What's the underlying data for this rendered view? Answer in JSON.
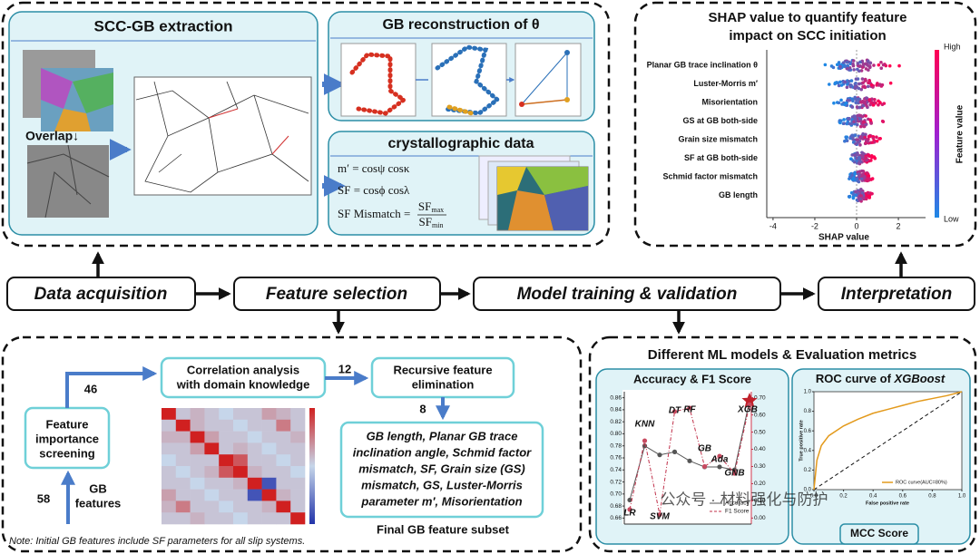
{
  "flow": [
    "Data acquisition",
    "Feature selection",
    "Model training & validation",
    "Interpretation"
  ],
  "acquisition": {
    "extraction_title": "SCC-GB extraction",
    "overlap": "Overlap↓",
    "reconstruction_title": "GB reconstruction of θ",
    "crystal_title": "crystallographic data",
    "equations": [
      "m′ = cosψ cosκ",
      "SF = cosϕ cosλ"
    ],
    "mismatch": {
      "lhs": "SF Mismatch =",
      "numerator": "SF",
      "numerator_sub": "max",
      "denominator": "SF",
      "denominator_sub": "min"
    }
  },
  "shap": {
    "title": [
      "SHAP value to quantify feature",
      "impact on SCC initiation"
    ],
    "features": [
      "Planar GB trace inclination θ",
      "Luster-Morris m′",
      "Misorientation",
      "GS at GB both-side",
      "Grain size mismatch",
      "SF at GB both-side",
      "Schmid factor mismatch",
      "GB length"
    ],
    "xlim": [
      -4.3,
      3.3
    ],
    "xticks": [
      -4,
      -2,
      0,
      2
    ],
    "xlabel": "SHAP value",
    "colorbar": {
      "high": "High",
      "low": "Low",
      "label": "Feature value"
    }
  },
  "selection": {
    "gb_features_count": "58",
    "gb_features_label": [
      "GB",
      "features"
    ],
    "screening": [
      "Feature",
      "importance",
      "screening"
    ],
    "count_after_screening": "46",
    "correlation": [
      "Correlation analysis",
      "with domain knowledge"
    ],
    "count_after_correlation": "12",
    "recursive": [
      "Recursive feature",
      "elimination"
    ],
    "count_final": "8",
    "final_subset": [
      "GB length, Planar GB trace",
      "inclination angle, Schmid factor",
      "mismatch, SF, Grain size (GS)",
      "mismatch, GS, Luster-Morris",
      "parameter m′, Misorientation"
    ],
    "final_caption": "Final GB feature subset",
    "note": "Note: Initial GB features include SF parameters for all slip systems.",
    "correlation_matrix": {
      "clim": [
        -1,
        1
      ],
      "rows": [
        [
          1,
          0.1,
          0.2,
          0.1,
          0.0,
          0.1,
          0.1,
          0.3,
          0.2,
          0.1
        ],
        [
          0.1,
          1,
          0.2,
          0.1,
          0.1,
          0.0,
          0.1,
          0.1,
          0.5,
          0.1
        ],
        [
          0.2,
          0.2,
          1,
          0.3,
          0.1,
          0.1,
          0.0,
          0.1,
          0.1,
          0.2
        ],
        [
          0.1,
          0.1,
          0.3,
          1,
          0.1,
          0.2,
          0.1,
          0.0,
          0.1,
          0.1
        ],
        [
          0.0,
          0.1,
          0.1,
          0.1,
          1,
          0.7,
          0.1,
          0.1,
          0.0,
          0.1
        ],
        [
          0.1,
          0.0,
          0.1,
          0.2,
          0.7,
          1,
          0.2,
          0.1,
          0.1,
          0.0
        ],
        [
          0.1,
          0.1,
          0.0,
          0.1,
          0.1,
          0.2,
          1,
          -0.8,
          0.1,
          0.1
        ],
        [
          0.3,
          0.1,
          0.1,
          0.0,
          0.1,
          0.1,
          -0.8,
          1,
          0.2,
          0.1
        ],
        [
          0.2,
          0.5,
          0.1,
          0.1,
          0.0,
          0.1,
          0.1,
          0.2,
          1,
          0.1
        ],
        [
          0.1,
          0.1,
          0.2,
          0.1,
          0.1,
          0.0,
          0.1,
          0.1,
          0.1,
          1
        ]
      ]
    }
  },
  "models": {
    "title": "Different ML models & Evaluation metrics",
    "accuracy_chart": {
      "type": "line",
      "title": "Accuracy & F1 Score",
      "categories": [
        "LR",
        "KNN",
        "SVM",
        "DT",
        "RF",
        "GB",
        "Ada",
        "GNB",
        "XGB"
      ],
      "ylim": [
        0.65,
        0.87
      ],
      "yticks": [
        0.66,
        0.68,
        {
          "value": 0.7,
          "label": "0.70"
        },
        0.72,
        0.74,
        0.76,
        0.78,
        {
          "value": 0.8,
          "label": "0.80"
        },
        0.82,
        0.84,
        0.86
      ],
      "y2lim": [
        -0.035,
        0.735
      ],
      "y2ticks": [
        {
          "value": 0,
          "label": "0.00"
        },
        {
          "value": 0.1,
          "label": "0.10"
        },
        {
          "value": 0.2,
          "label": "0.20"
        },
        {
          "value": 0.3,
          "label": "0.30"
        },
        {
          "value": 0.4,
          "label": "0.40"
        },
        {
          "value": 0.5,
          "label": "0.50"
        },
        {
          "value": 0.6,
          "label": "0.60"
        },
        {
          "value": 0.7,
          "label": "0.70"
        }
      ],
      "series": [
        {
          "name": "Accuracy",
          "color": "#555555",
          "values": [
            0.69,
            0.78,
            0.765,
            0.77,
            0.755,
            0.745,
            0.745,
            0.74,
            0.855
          ]
        },
        {
          "name": "F1 Score",
          "color": "#c0304a",
          "axis": "y2",
          "values": [
            0.05,
            0.45,
            0.02,
            0.62,
            0.64,
            0.3,
            0.36,
            0.26,
            0.66
          ]
        }
      ]
    },
    "roc_chart": {
      "type": "line",
      "title": "ROC curve of ",
      "title_model": "XGBoost",
      "xlabel": "False positive rate",
      "ylabel": "True positive rate",
      "xlim": [
        0,
        1
      ],
      "ylim": [
        0,
        1
      ],
      "xticks": [
        {
          "value": 0,
          "label": "0.0"
        },
        0.2,
        0.4,
        0.6,
        0.8,
        {
          "value": 1,
          "label": "1.0"
        }
      ],
      "yticks": [
        {
          "value": 0,
          "label": "0.0"
        },
        0.2,
        0.4,
        0.6,
        0.8,
        {
          "value": 1,
          "label": "1.0"
        }
      ],
      "series": [
        {
          "name": "ROC curve(AUC=80%)",
          "color": "#e39a1c",
          "x": [
            0,
            0.02,
            0.05,
            0.1,
            0.2,
            0.3,
            0.4,
            0.5,
            0.6,
            0.7,
            0.8,
            0.9,
            1
          ],
          "values": [
            0,
            0.3,
            0.45,
            0.55,
            0.65,
            0.72,
            0.78,
            0.82,
            0.86,
            0.9,
            0.93,
            0.96,
            1
          ]
        }
      ]
    },
    "mcc_label": "MCC Score"
  },
  "watermark": "公众号 · 材料强化与防护"
}
